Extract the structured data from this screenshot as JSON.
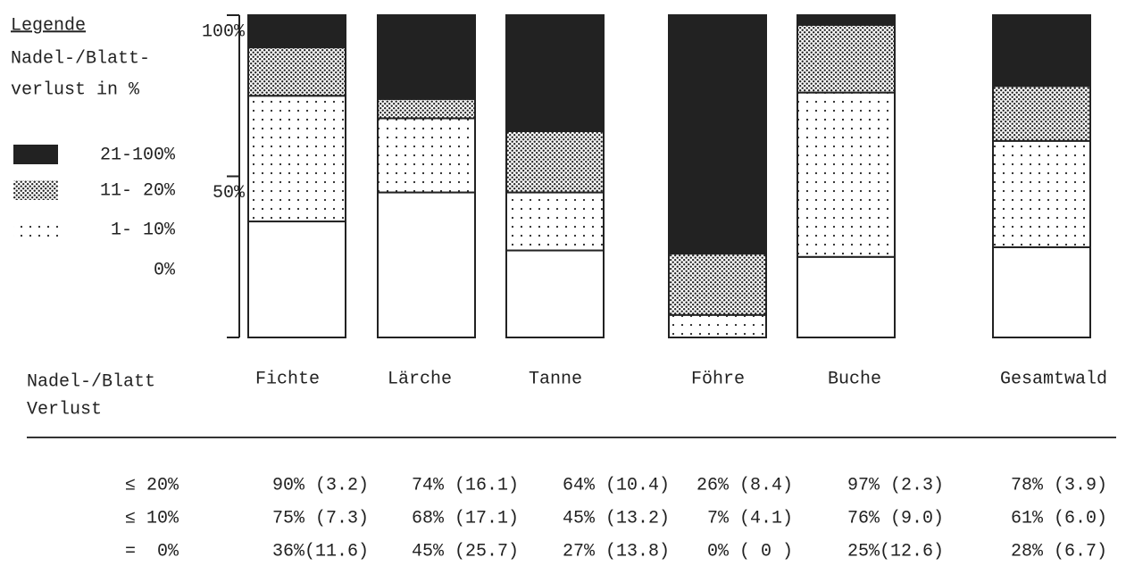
{
  "chart_data": {
    "type": "stacked_bar",
    "legend_title": "Legende",
    "legend_subtitle": [
      "Nadel-/Blatt-",
      "verlust in %"
    ],
    "categories": [
      "Fichte",
      "Lärche",
      "Tanne",
      "Föhre",
      "Buche",
      "Gesamtwald"
    ],
    "series": [
      {
        "name": "0%",
        "color": "#ffffff",
        "pattern": "none",
        "values": [
          36,
          45,
          27,
          0,
          25,
          28
        ]
      },
      {
        "name": "1- 10%",
        "color": "#ffffff",
        "pattern": "sparse",
        "values": [
          39,
          23,
          18,
          7,
          51,
          33
        ]
      },
      {
        "name": "11- 20%",
        "color": "#ffffff",
        "pattern": "dense",
        "values": [
          15,
          6,
          19,
          19,
          21,
          17
        ]
      },
      {
        "name": "21-100%",
        "color": "#222222",
        "pattern": "none",
        "values": [
          10,
          26,
          36,
          74,
          3,
          22
        ]
      }
    ],
    "ylim": [
      0,
      100
    ],
    "yticks": [
      {
        "value": 50,
        "label": "50%"
      },
      {
        "value": 100,
        "label": "100%"
      }
    ],
    "table": {
      "header": [
        "Nadel-/Blatt",
        "Verlust"
      ],
      "rows": [
        {
          "label": "≤ 20%",
          "cells": [
            "90% (3.2)",
            "74% (16.1)",
            "64% (10.4)",
            "26% (8.4)",
            "97% (2.3)",
            "78% (3.9)"
          ]
        },
        {
          "label": "≤ 10%",
          "cells": [
            "75% (7.3)",
            "68% (17.1)",
            "45% (13.2)",
            "7% (4.1)",
            "76% (9.0)",
            "61% (6.0)"
          ]
        },
        {
          "label": "=  0%",
          "cells": [
            "36%(11.6)",
            "45% (25.7)",
            "27% (13.8)",
            "0% ( 0 )",
            "25%(12.6)",
            "28% (6.7)"
          ]
        }
      ]
    }
  }
}
